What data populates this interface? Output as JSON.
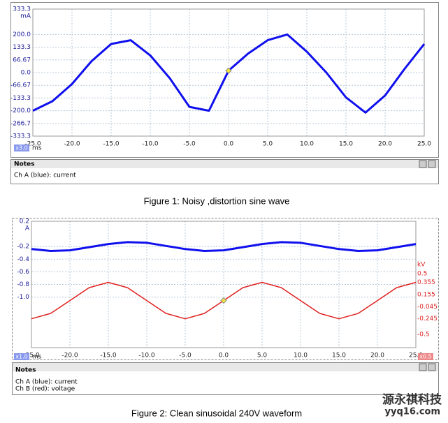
{
  "chart_data": [
    {
      "type": "line",
      "ylabel": "mA",
      "xlabel": "ms",
      "x_scale_label": "x3.0",
      "x": [
        -25,
        -22.5,
        -20,
        -17.5,
        -15,
        -12.5,
        -10,
        -7.5,
        -5,
        -2.5,
        0,
        2.5,
        5,
        7.5,
        10,
        12.5,
        15,
        17.5,
        20,
        22.5,
        25
      ],
      "series": [
        {
          "name": "Ch A (blue): current",
          "color": "#1010ee",
          "values": [
            -200,
            -150,
            -60,
            60,
            150,
            170,
            90,
            -30,
            -180,
            -200,
            10,
            100,
            170,
            200,
            110,
            0,
            -130,
            -210,
            -120,
            20,
            150
          ]
        }
      ],
      "xlim": [
        -25,
        25
      ],
      "xticks": [
        {
          "value": -25,
          "label": "-25.0"
        },
        {
          "value": -20,
          "label": "-20.0"
        },
        {
          "value": -15,
          "label": "-15.0"
        },
        {
          "value": -10,
          "label": "-10.0"
        },
        {
          "value": -5,
          "label": "-5.0"
        },
        {
          "value": 0,
          "label": "0.0"
        },
        {
          "value": 5,
          "label": "5.0"
        },
        {
          "value": 10,
          "label": "10.0"
        },
        {
          "value": 15,
          "label": "15.0"
        },
        {
          "value": 20,
          "label": "20.0"
        },
        {
          "value": 25,
          "label": "25.0"
        }
      ],
      "ylim": [
        -333.3,
        333.3
      ],
      "yticks": [
        333.3,
        {
          "value": 200,
          "label": "200.0"
        },
        133.3,
        66.67,
        {
          "value": 0,
          "label": "0.0"
        },
        -66.67,
        -133.3,
        {
          "value": -200,
          "label": "-200.0"
        },
        -266.7,
        -333.3
      ],
      "grid": true
    },
    {
      "type": "line",
      "ylabel": "A",
      "y2label": "kV",
      "xlabel": "ms",
      "x_scale_label": "x1.0",
      "y2_scale_label": "x0.5",
      "x": [
        -25,
        -22.5,
        -20,
        -17.5,
        -15,
        -12.5,
        -10,
        -7.5,
        -5,
        -2.5,
        0,
        2.5,
        5,
        7.5,
        10,
        12.5,
        15,
        17.5,
        20,
        22.5,
        25
      ],
      "series": [
        {
          "name": "Ch A (blue): current",
          "color": "#1010ee",
          "values": [
            -0.24,
            -0.27,
            -0.26,
            -0.21,
            -0.16,
            -0.13,
            -0.14,
            -0.19,
            -0.24,
            -0.27,
            -0.26,
            -0.21,
            -0.16,
            -0.13,
            -0.14,
            -0.19,
            -0.24,
            -0.27,
            -0.26,
            -0.21,
            -0.16
          ]
        },
        {
          "name": "Ch B (red): voltage",
          "color": "#e02020",
          "axis": "y2",
          "values": [
            -0.245,
            -0.157,
            0.055,
            0.267,
            0.355,
            0.267,
            0.055,
            -0.157,
            -0.245,
            -0.157,
            0.055,
            0.267,
            0.355,
            0.267,
            0.055,
            -0.157,
            -0.245,
            -0.157,
            0.055,
            0.267,
            0.355
          ]
        }
      ],
      "xlim": [
        -25,
        25
      ],
      "xticks": [
        {
          "value": -25,
          "label": "-25.0"
        },
        {
          "value": -20,
          "label": "-20.0"
        },
        {
          "value": -15,
          "label": "-15.0"
        },
        {
          "value": -10,
          "label": "-10.0"
        },
        {
          "value": -5,
          "label": "-5.0"
        },
        {
          "value": 0,
          "label": "0.0"
        },
        {
          "value": 5,
          "label": "5.0"
        },
        {
          "value": 10,
          "label": "10.0"
        },
        {
          "value": 15,
          "label": "15.0"
        },
        {
          "value": 20,
          "label": "20.0"
        },
        {
          "value": 25,
          "label": "25.0"
        }
      ],
      "ylim": [
        -1.8,
        0.2
      ],
      "yticks": [
        0.2,
        -0.2,
        -0.4,
        -0.6,
        -0.8,
        {
          "value": -1,
          "label": "-1.0"
        }
      ],
      "y2lim": [
        -0.72,
        1.36
      ],
      "y2ticks": [
        0.5,
        0.355,
        0.155,
        -0.045,
        -0.245,
        -0.5
      ],
      "grid": true
    }
  ],
  "notes_title": "Notes",
  "captions": [
    "Figure 1: Noisy ,distortion  sine wave",
    "Figure 2: Clean sinusoidal  240V  waveform"
  ],
  "watermark": {
    "name": "源永祺科技",
    "site": "yyq16.com"
  }
}
